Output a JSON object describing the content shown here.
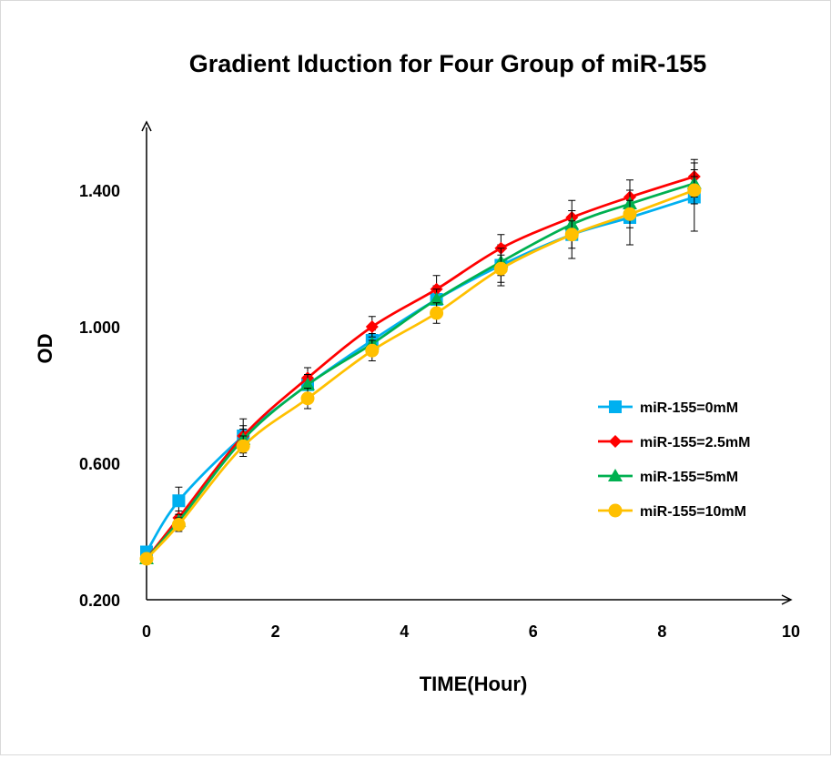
{
  "chart_data": {
    "type": "line",
    "title": "Gradient Iduction for Four Group of miR-155",
    "xlabel": "TIME(Hour)",
    "ylabel": "OD",
    "xlim": [
      0,
      10
    ],
    "ylim": [
      0.2,
      1.6
    ],
    "x_ticks": [
      0,
      2,
      4,
      6,
      8,
      10
    ],
    "x_tick_labels": [
      "0",
      "2",
      "4",
      "6",
      "8",
      "10"
    ],
    "y_ticks": [
      0.2,
      0.6,
      1.0,
      1.4
    ],
    "y_tick_labels": [
      "0.200",
      "0.600",
      "1.000",
      "1.400"
    ],
    "grid": false,
    "legend_position": "right",
    "x": [
      0,
      0.5,
      1.5,
      2.5,
      3.5,
      4.5,
      5.5,
      6.6,
      7.5,
      8.5
    ],
    "series": [
      {
        "name": "miR-155=0mM",
        "color": "#00B0F0",
        "marker": "square",
        "values": [
          0.34,
          0.49,
          0.68,
          0.83,
          0.96,
          1.08,
          1.18,
          1.27,
          1.32,
          1.38
        ],
        "error": [
          0.01,
          0.04,
          0.05,
          0.03,
          0.03,
          0.04,
          0.06,
          0.07,
          0.08,
          0.1
        ]
      },
      {
        "name": "miR-155=2.5mM",
        "color": "#FF0000",
        "marker": "diamond",
        "values": [
          0.32,
          0.44,
          0.68,
          0.85,
          1.0,
          1.11,
          1.23,
          1.32,
          1.38,
          1.44
        ],
        "error": [
          0.01,
          0.02,
          0.03,
          0.03,
          0.03,
          0.04,
          0.04,
          0.05,
          0.05,
          0.05
        ]
      },
      {
        "name": "miR-155=5mM",
        "color": "#00B050",
        "marker": "triangle",
        "values": [
          0.32,
          0.43,
          0.67,
          0.83,
          0.95,
          1.08,
          1.19,
          1.3,
          1.36,
          1.42
        ],
        "error": [
          0.01,
          0.02,
          0.03,
          0.03,
          0.03,
          0.03,
          0.04,
          0.04,
          0.04,
          0.04
        ]
      },
      {
        "name": "miR-155=10mM",
        "color": "#FFC000",
        "marker": "circle",
        "values": [
          0.32,
          0.42,
          0.65,
          0.79,
          0.93,
          1.04,
          1.17,
          1.27,
          1.33,
          1.4
        ],
        "error": [
          0.01,
          0.02,
          0.03,
          0.03,
          0.03,
          0.03,
          0.04,
          0.04,
          0.04,
          0.04
        ]
      }
    ]
  }
}
